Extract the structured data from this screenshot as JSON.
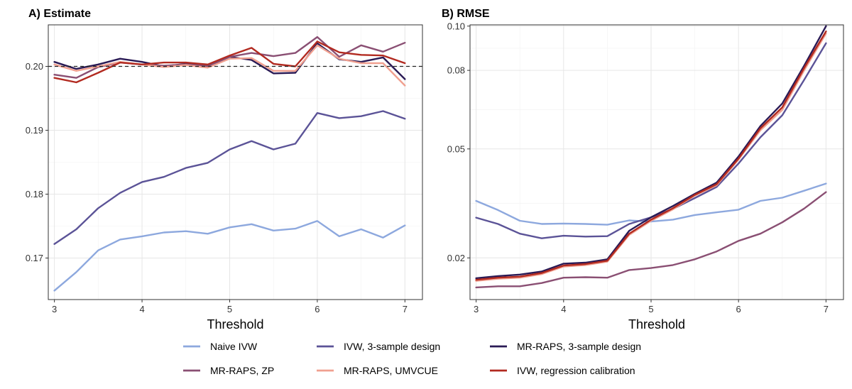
{
  "chart_data": [
    {
      "type": "line",
      "title": "A) Estimate",
      "xlabel": "Threshold",
      "ylabel": "",
      "xlim": [
        2.93,
        7.2
      ],
      "ylim": [
        0.1635,
        0.2065
      ],
      "y_scale": "linear",
      "x_ticks": [
        3,
        4,
        5,
        6,
        7
      ],
      "x_tick_labels": [
        "3",
        "4",
        "5",
        "6",
        "7"
      ],
      "y_ticks": [
        0.17,
        0.18,
        0.19,
        0.2
      ],
      "y_tick_labels": [
        "0.17",
        "0.18",
        "0.19",
        "0.20"
      ],
      "reference_line": 0.2,
      "x": [
        3,
        3.25,
        3.5,
        3.75,
        4,
        4.25,
        4.5,
        4.75,
        5,
        5.25,
        5.5,
        5.75,
        6,
        6.25,
        6.5,
        6.75,
        7
      ],
      "series": [
        {
          "name": "Naive IVW",
          "color": "#8da8de",
          "values": [
            0.1649,
            0.1678,
            0.1712,
            0.1729,
            0.1734,
            0.174,
            0.1742,
            0.1738,
            0.1748,
            0.1753,
            0.1743,
            0.1746,
            0.1758,
            0.1734,
            0.1745,
            0.1732,
            0.1751
          ]
        },
        {
          "name": "IVW, 3-sample design",
          "color": "#5b5397",
          "values": [
            0.1722,
            0.1745,
            0.1778,
            0.1802,
            0.1819,
            0.1827,
            0.1841,
            0.1849,
            0.187,
            0.1883,
            0.187,
            0.1879,
            0.1927,
            0.1919,
            0.1922,
            0.193,
            0.1918
          ]
        },
        {
          "name": "MR-RAPS, 3-sample design",
          "color": "#2a1a55",
          "values": [
            0.2007,
            0.1996,
            0.2003,
            0.2012,
            0.2007,
            0.2,
            0.2004,
            0.2,
            0.2015,
            0.201,
            0.1989,
            0.199,
            0.2036,
            0.2011,
            0.2007,
            0.2014,
            0.198
          ]
        },
        {
          "name": "MR-RAPS, ZP",
          "color": "#8a4f73",
          "values": [
            0.1987,
            0.1982,
            0.1999,
            0.2006,
            0.2003,
            0.2001,
            0.2003,
            0.2001,
            0.2015,
            0.2021,
            0.2016,
            0.2021,
            0.2046,
            0.2015,
            0.2033,
            0.2023,
            0.2037
          ]
        },
        {
          "name": "MR-RAPS, UMVCUE",
          "color": "#f0a090",
          "values": [
            0.2003,
            0.1993,
            0.2,
            0.2007,
            0.2003,
            0.1999,
            0.2002,
            0.1998,
            0.2012,
            0.2013,
            0.1993,
            0.1993,
            0.2033,
            0.2012,
            0.2005,
            0.2005,
            0.197
          ]
        },
        {
          "name": "IVW, regression calibration",
          "color": "#b22a20",
          "values": [
            0.1982,
            0.1975,
            0.199,
            0.2006,
            0.2003,
            0.2006,
            0.2006,
            0.2003,
            0.2017,
            0.2029,
            0.2004,
            0.2,
            0.2039,
            0.2022,
            0.2018,
            0.2017,
            0.2005
          ]
        }
      ]
    },
    {
      "type": "line",
      "title": "B) RMSE",
      "xlabel": "Threshold",
      "ylabel": "",
      "xlim": [
        2.93,
        7.2
      ],
      "ylim": [
        0.0121,
        0.1006
      ],
      "y_scale": "sqrt",
      "x_ticks": [
        3,
        4,
        5,
        6,
        7
      ],
      "x_tick_labels": [
        "3",
        "4",
        "5",
        "6",
        "7"
      ],
      "y_ticks": [
        0.02,
        0.05,
        0.08,
        0.1
      ],
      "y_tick_labels": [
        "0.02",
        "0.05",
        "0.08",
        "0.10"
      ],
      "x": [
        3,
        3.25,
        3.5,
        3.75,
        4,
        4.25,
        4.5,
        4.75,
        5,
        5.25,
        5.5,
        5.75,
        6,
        6.25,
        6.5,
        6.75,
        7
      ],
      "series": [
        {
          "name": "Naive IVW",
          "color": "#8da8de",
          "values": [
            0.034,
            0.0315,
            0.0287,
            0.0279,
            0.028,
            0.0279,
            0.0277,
            0.0288,
            0.0285,
            0.029,
            0.0302,
            0.0309,
            0.0316,
            0.034,
            0.0349,
            0.0369,
            0.039
          ]
        },
        {
          "name": "IVW, 3-sample design",
          "color": "#5b5397",
          "values": [
            0.0295,
            0.0279,
            0.0255,
            0.0244,
            0.025,
            0.0248,
            0.0249,
            0.0279,
            0.0296,
            0.0318,
            0.0348,
            0.038,
            0.0452,
            0.054,
            0.062,
            0.076,
            0.092
          ]
        },
        {
          "name": "MR-RAPS, 3-sample design",
          "color": "#2a1a55",
          "values": [
            0.0159,
            0.0163,
            0.0166,
            0.0172,
            0.0188,
            0.019,
            0.0197,
            0.0262,
            0.0296,
            0.0326,
            0.036,
            0.0393,
            0.0475,
            0.058,
            0.0665,
            0.082,
            0.1
          ]
        },
        {
          "name": "MR-RAPS, ZP",
          "color": "#8a4f73",
          "values": [
            0.0142,
            0.0144,
            0.0144,
            0.015,
            0.016,
            0.0161,
            0.016,
            0.0175,
            0.0179,
            0.0185,
            0.0197,
            0.0214,
            0.0238,
            0.0255,
            0.0283,
            0.0319,
            0.0365
          ]
        },
        {
          "name": "MR-RAPS, UMVCUE",
          "color": "#f0a090",
          "values": [
            0.0154,
            0.0158,
            0.016,
            0.0167,
            0.0182,
            0.0185,
            0.0192,
            0.0252,
            0.0287,
            0.0317,
            0.0355,
            0.0385,
            0.0465,
            0.0565,
            0.064,
            0.08,
            0.0965
          ]
        },
        {
          "name": "IVW, regression calibration",
          "color": "#b22a20",
          "values": [
            0.0156,
            0.016,
            0.0162,
            0.0169,
            0.0184,
            0.0187,
            0.0194,
            0.0255,
            0.029,
            0.032,
            0.0357,
            0.0388,
            0.0468,
            0.0572,
            0.065,
            0.081,
            0.0975
          ]
        }
      ]
    }
  ],
  "legend": {
    "items": [
      {
        "label": "Naive IVW",
        "color": "#8da8de"
      },
      {
        "label": "IVW, 3-sample design",
        "color": "#5b5397"
      },
      {
        "label": "MR-RAPS, 3-sample design",
        "color": "#2a1a55"
      },
      {
        "label": "MR-RAPS, ZP",
        "color": "#8a4f73"
      },
      {
        "label": "MR-RAPS, UMVCUE",
        "color": "#f0a090"
      },
      {
        "label": "IVW, regression calibration",
        "color": "#b22a20"
      }
    ]
  }
}
